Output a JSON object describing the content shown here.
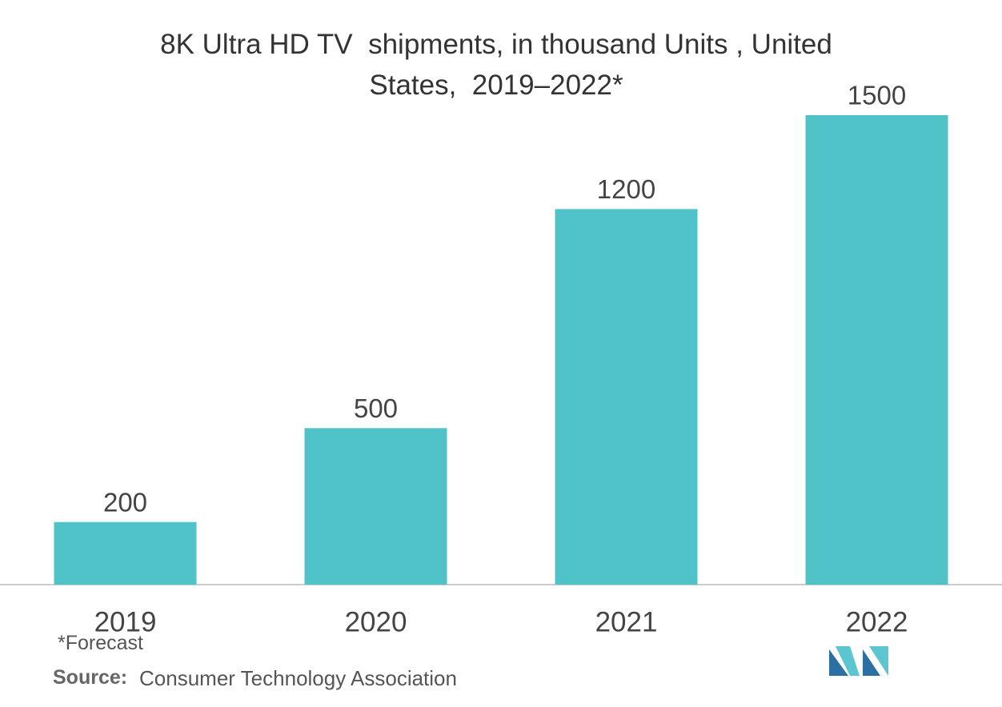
{
  "chart_data": {
    "type": "bar",
    "title": "8K Ultra HD TV  shipments, in thousand Units , United States,  2019–2022*",
    "categories": [
      "2019",
      "2020",
      "2021",
      "2022"
    ],
    "values": [
      200,
      500,
      1200,
      1500
    ],
    "color": "#50c3c9",
    "ylim": [
      0,
      1500
    ],
    "footnote": "*Forecast",
    "source_label": "Source:",
    "source": "Consumer Technology Association"
  }
}
